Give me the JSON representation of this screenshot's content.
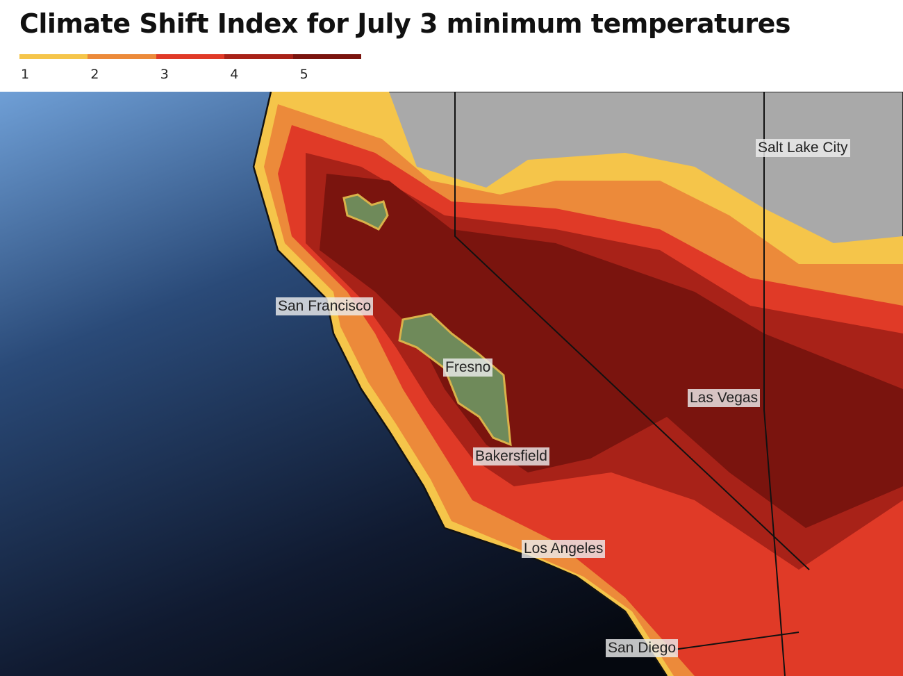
{
  "header": {
    "title": "Climate Shift Index for July 3 minimum temperatures"
  },
  "legend": {
    "items": [
      {
        "label": "1",
        "color": "#f5c54a"
      },
      {
        "label": "2",
        "color": "#ec8a3a"
      },
      {
        "label": "3",
        "color": "#e03a27"
      },
      {
        "label": "4",
        "color": "#a82218"
      },
      {
        "label": "5",
        "color": "#7a140e"
      }
    ]
  },
  "cities": [
    {
      "name": "Salt Lake City"
    },
    {
      "name": "San Francisco"
    },
    {
      "name": "Fresno"
    },
    {
      "name": "Las Vegas"
    },
    {
      "name": "Bakersfield"
    },
    {
      "name": "Los Angeles"
    },
    {
      "name": "San Diego"
    }
  ]
}
